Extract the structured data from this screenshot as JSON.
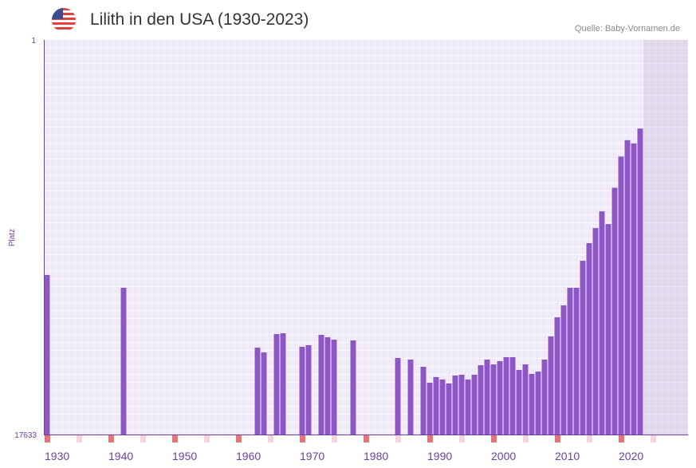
{
  "header": {
    "title": "Lilith in den USA (1930-2023)",
    "source": "Quelle: Baby-Vornamen.de",
    "flag_icon": "us-flag-icon"
  },
  "colors": {
    "bar": "#8e55c6",
    "axis": "#6a3fa0",
    "grid_bg": "#efeaf9",
    "future_bg": "#e3dfee",
    "decade_marker": "#e8747a",
    "half_decade_marker": "#f5d5dc"
  },
  "chart_data": {
    "type": "bar",
    "title": "Lilith in den USA (1930-2023)",
    "xlabel": "",
    "ylabel": "Platz",
    "y_scale": "log-inverted",
    "ylim": [
      17633,
      1
    ],
    "y_tick_labels": [
      "1",
      "17633"
    ],
    "xlim": [
      1930,
      2029
    ],
    "x_tick_labels": [
      "1930",
      "1940",
      "1950",
      "1960",
      "1970",
      "1980",
      "1990",
      "2000",
      "2010",
      "2020"
    ],
    "x_ticks": [
      1930,
      1940,
      1950,
      1960,
      1970,
      1980,
      1990,
      2000,
      2010,
      2020
    ],
    "points": [
      {
        "year": 1930,
        "rank": 339
      },
      {
        "year": 1942,
        "rank": 465
      },
      {
        "year": 1963,
        "rank": 2047
      },
      {
        "year": 1964,
        "rank": 2305
      },
      {
        "year": 1966,
        "rank": 1465
      },
      {
        "year": 1967,
        "rank": 1435
      },
      {
        "year": 1970,
        "rank": 2006
      },
      {
        "year": 1971,
        "rank": 1928
      },
      {
        "year": 1973,
        "rank": 1492
      },
      {
        "year": 1974,
        "rank": 1583
      },
      {
        "year": 1975,
        "rank": 1681
      },
      {
        "year": 1978,
        "rank": 1714
      },
      {
        "year": 1985,
        "rank": 2646
      },
      {
        "year": 1987,
        "rank": 2754
      },
      {
        "year": 1989,
        "rank": 3292
      },
      {
        "year": 1990,
        "rank": 4879
      },
      {
        "year": 1991,
        "rank": 4250
      },
      {
        "year": 1992,
        "rank": 4508
      },
      {
        "year": 1993,
        "rank": 4977
      },
      {
        "year": 1994,
        "rank": 4087
      },
      {
        "year": 1995,
        "rank": 4006
      },
      {
        "year": 1996,
        "rank": 4508
      },
      {
        "year": 1997,
        "rank": 4006
      },
      {
        "year": 1998,
        "rank": 3165
      },
      {
        "year": 1999,
        "rank": 2754
      },
      {
        "year": 2000,
        "rank": 3103
      },
      {
        "year": 2001,
        "rank": 2864
      },
      {
        "year": 2002,
        "rank": 2594
      },
      {
        "year": 2003,
        "rank": 2594
      },
      {
        "year": 2004,
        "rank": 3561
      },
      {
        "year": 2005,
        "rank": 3103
      },
      {
        "year": 2006,
        "rank": 3928
      },
      {
        "year": 2007,
        "rank": 3701
      },
      {
        "year": 2008,
        "rank": 2754
      },
      {
        "year": 2009,
        "rank": 1552
      },
      {
        "year": 2010,
        "rank": 967
      },
      {
        "year": 2011,
        "rank": 718
      },
      {
        "year": 2012,
        "rank": 465
      },
      {
        "year": 2013,
        "rank": 465
      },
      {
        "year": 2014,
        "rank": 238
      },
      {
        "year": 2015,
        "rank": 154
      },
      {
        "year": 2016,
        "rank": 106
      },
      {
        "year": 2017,
        "rank": 70
      },
      {
        "year": 2018,
        "rank": 96
      },
      {
        "year": 2019,
        "rank": 39
      },
      {
        "year": 2020,
        "rank": 18
      },
      {
        "year": 2021,
        "rank": 12
      },
      {
        "year": 2022,
        "rank": 13
      },
      {
        "year": 2023,
        "rank": 9
      }
    ]
  }
}
